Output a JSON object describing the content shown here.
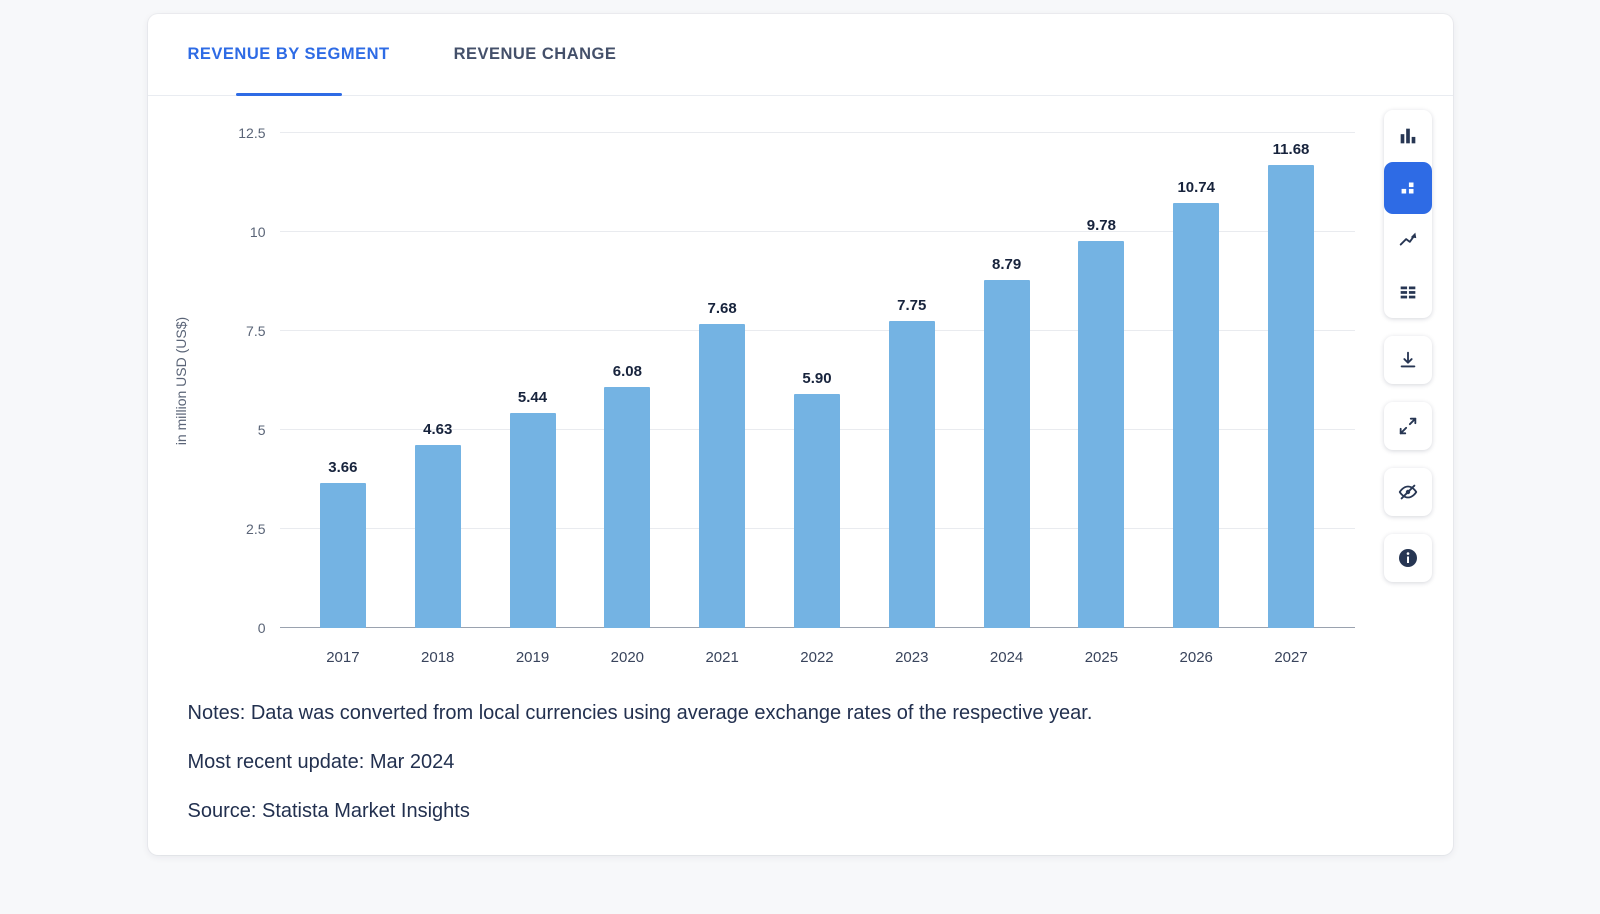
{
  "tabs": [
    {
      "label": "REVENUE BY SEGMENT",
      "active": true
    },
    {
      "label": "REVENUE CHANGE",
      "active": false
    }
  ],
  "chart_data": {
    "type": "bar",
    "categories": [
      "2017",
      "2018",
      "2019",
      "2020",
      "2021",
      "2022",
      "2023",
      "2024",
      "2025",
      "2026",
      "2027"
    ],
    "values": [
      3.66,
      4.63,
      5.44,
      6.08,
      7.68,
      5.9,
      7.75,
      8.79,
      9.78,
      10.74,
      11.68
    ],
    "value_labels": [
      "3.66",
      "4.63",
      "5.44",
      "6.08",
      "7.68",
      "5.90",
      "7.75",
      "8.79",
      "9.78",
      "10.74",
      "11.68"
    ],
    "title": "",
    "xlabel": "",
    "ylabel": "in million USD (US$)",
    "ylim": [
      0,
      12.5
    ],
    "yticks": [
      0,
      2.5,
      5,
      7.5,
      10,
      12.5
    ],
    "ytick_labels": [
      "0",
      "2.5",
      "5",
      "7.5",
      "10",
      "12.5"
    ],
    "grid": true,
    "legend": "none",
    "bar_color": "#74b3e3"
  },
  "toolbar": {
    "buttons": [
      {
        "name": "column-chart-icon",
        "active": false
      },
      {
        "name": "segmented-chart-icon",
        "active": true
      },
      {
        "name": "line-chart-icon",
        "active": false
      },
      {
        "name": "table-view-icon",
        "active": false
      },
      {
        "name": "download-icon",
        "active": false
      },
      {
        "name": "fullscreen-icon",
        "active": false
      },
      {
        "name": "hide-labels-icon",
        "active": false
      },
      {
        "name": "info-icon",
        "active": false
      }
    ]
  },
  "footer": {
    "notes": "Notes: Data was converted from local currencies using average exchange rates of the respective year.",
    "update": "Most recent update: Mar 2024",
    "source": "Source: Statista Market Insights"
  },
  "colors": {
    "accent": "#2e6be5",
    "bar": "#74b3e3",
    "grid": "#e9ebef"
  }
}
